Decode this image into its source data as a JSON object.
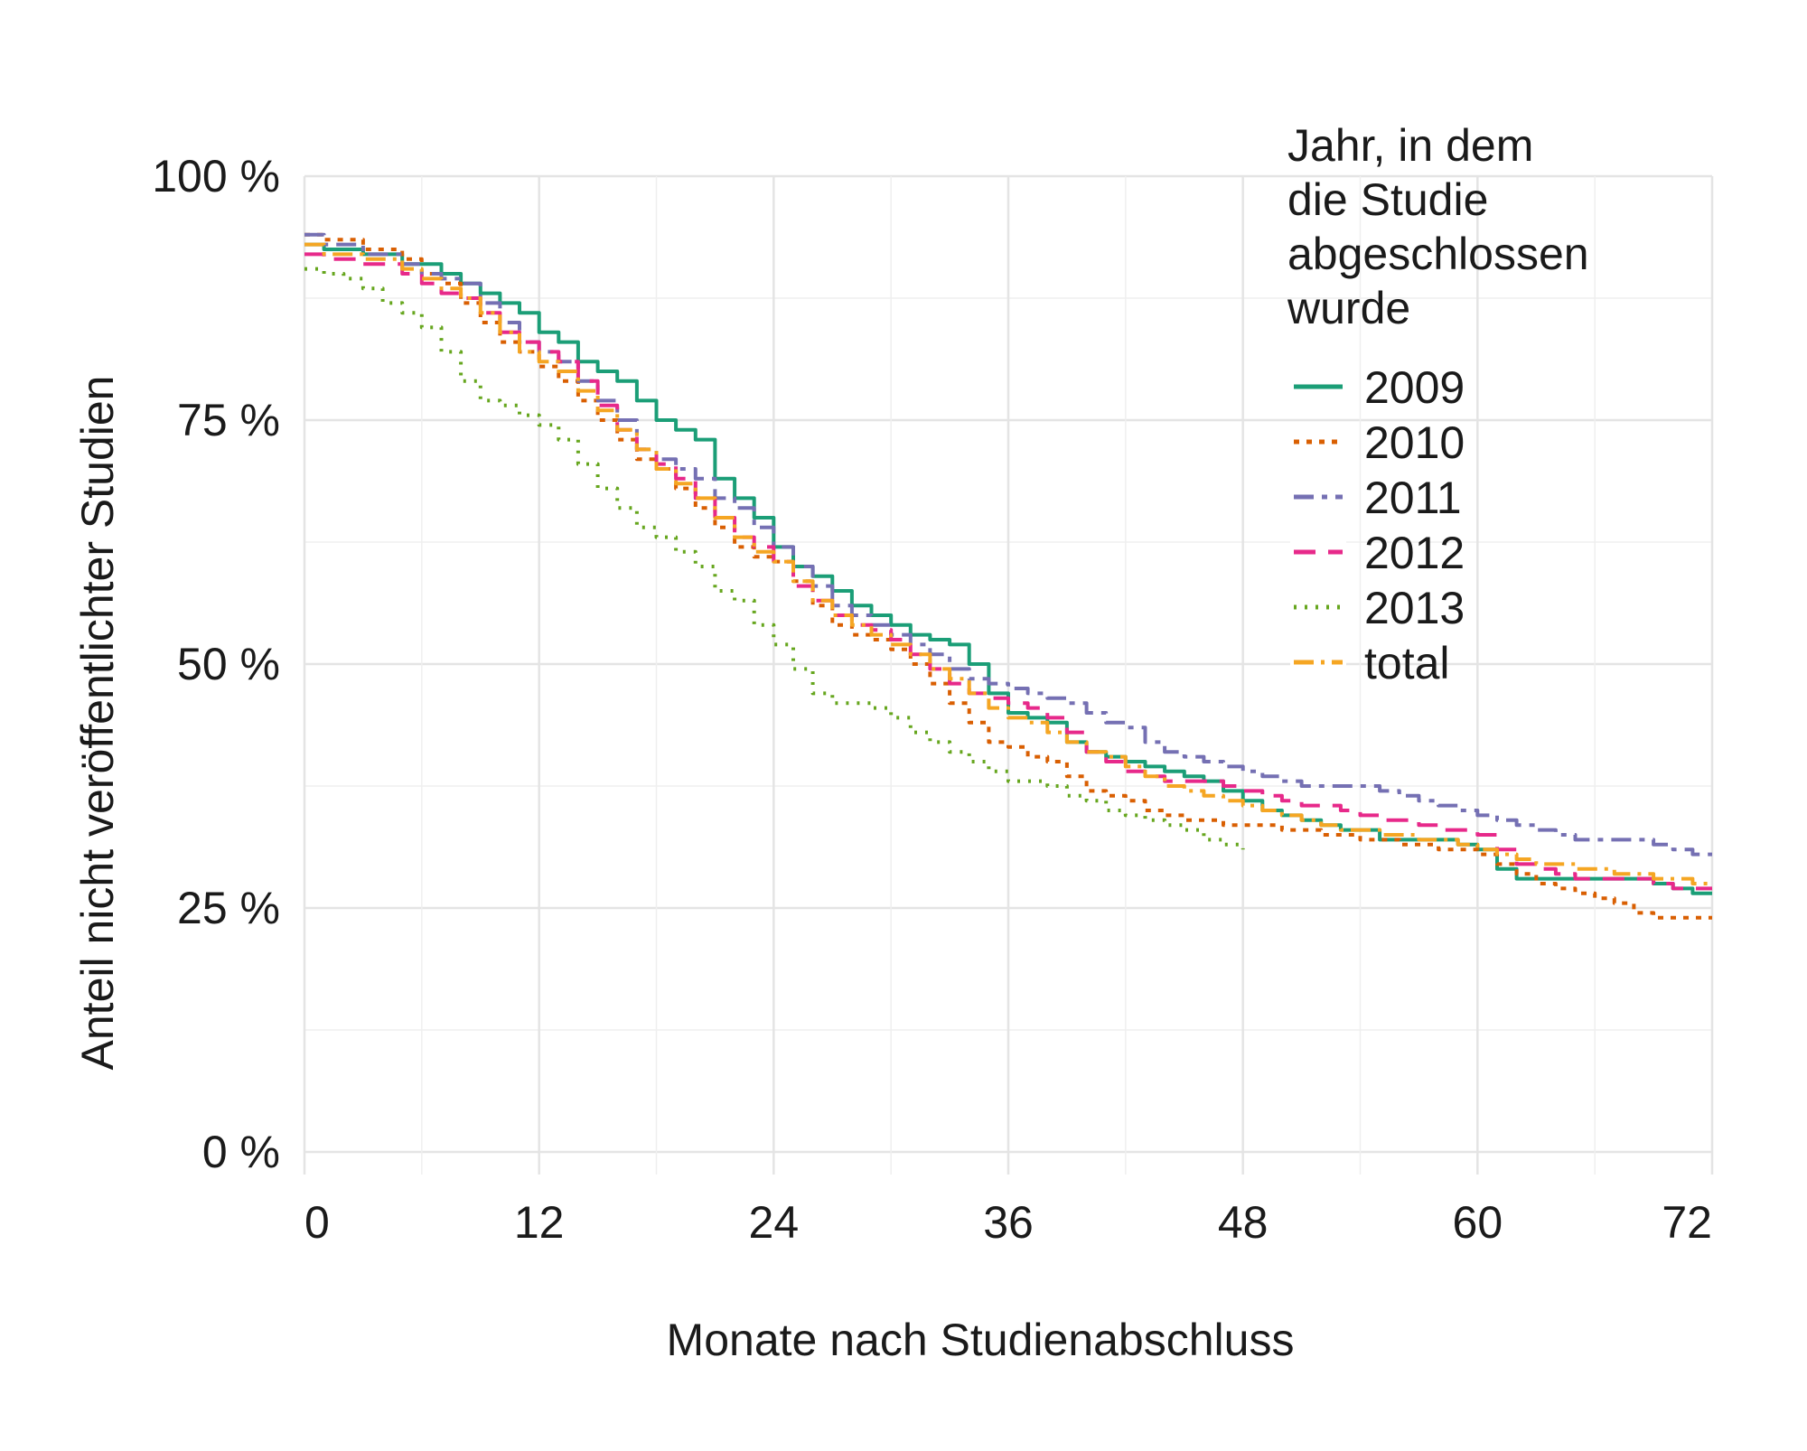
{
  "chart_data": {
    "type": "line",
    "title": "",
    "xlabel": "Monate nach Studienabschluss",
    "ylabel": "Anteil nicht veröffentlichter Studien",
    "xlim": [
      0,
      72
    ],
    "ylim": [
      0,
      100
    ],
    "x_ticks": [
      0,
      12,
      24,
      36,
      48,
      60,
      72
    ],
    "y_ticks": [
      0,
      25,
      50,
      75,
      100
    ],
    "y_tick_labels": [
      "0 %",
      "25 %",
      "50 %",
      "75 %",
      "100 %"
    ],
    "grid": true,
    "legend": {
      "title_lines": [
        "Jahr, in dem",
        "die Studie",
        "abgeschlossen",
        "wurde"
      ],
      "placement": "top-right"
    },
    "series": [
      {
        "name": "2009",
        "color": "#1b9e77",
        "dash": "solid",
        "x": [
          0,
          1,
          3,
          5,
          6,
          7,
          8,
          9,
          10,
          11,
          12,
          13,
          14,
          15,
          16,
          17,
          18,
          19,
          20,
          21,
          22,
          23,
          24,
          25,
          26,
          27,
          28,
          29,
          30,
          31,
          32,
          33,
          34,
          35,
          36,
          37,
          38,
          39,
          40,
          41,
          42,
          43,
          44,
          45,
          46,
          47,
          48,
          49,
          50,
          51,
          52,
          53,
          54,
          55,
          56,
          57,
          58,
          59,
          60,
          61,
          62,
          63,
          64,
          65,
          66,
          67,
          68,
          69,
          70,
          71,
          72
        ],
        "y": [
          93,
          92.5,
          92,
          91,
          91,
          90,
          89,
          88,
          87,
          86,
          84,
          83,
          81,
          80,
          79,
          77,
          75,
          74,
          73,
          69,
          67,
          65,
          62,
          60,
          59,
          57.5,
          56,
          55,
          54,
          53,
          52.5,
          52,
          50,
          47,
          45,
          44.5,
          44,
          42,
          41,
          40.5,
          40,
          39.5,
          39,
          38.5,
          38,
          37,
          36,
          35,
          34.5,
          34,
          33.5,
          33,
          33,
          32,
          32,
          32,
          32,
          31.5,
          31,
          29,
          28,
          28,
          28,
          28,
          28,
          28,
          28,
          27.5,
          27,
          26.5,
          26.5
        ]
      },
      {
        "name": "2010",
        "color": "#d95f02",
        "dash": "6,8",
        "x": [
          0,
          1,
          3,
          5,
          6,
          7,
          8,
          9,
          10,
          11,
          12,
          13,
          14,
          15,
          16,
          17,
          18,
          19,
          20,
          21,
          22,
          23,
          24,
          25,
          26,
          27,
          28,
          29,
          30,
          31,
          32,
          33,
          34,
          35,
          36,
          37,
          38,
          39,
          40,
          41,
          42,
          43,
          44,
          45,
          46,
          47,
          48,
          49,
          50,
          51,
          52,
          53,
          54,
          55,
          56,
          57,
          58,
          59,
          60,
          61,
          62,
          63,
          64,
          65,
          66,
          67,
          68,
          69,
          70,
          71,
          72
        ],
        "y": [
          94,
          93.5,
          92.5,
          91.5,
          90,
          89,
          87,
          85,
          83,
          82,
          80.5,
          79,
          77,
          75,
          73,
          71,
          70,
          68,
          66,
          64,
          62,
          61,
          60.5,
          58.5,
          56,
          54,
          53,
          52.5,
          51.5,
          50,
          48,
          46,
          44,
          42,
          41.5,
          40.5,
          40,
          38.5,
          37,
          36.5,
          36,
          35,
          34.5,
          34,
          34,
          33.5,
          33.5,
          33.5,
          33,
          33,
          32.5,
          32.5,
          32,
          32,
          31.5,
          31.5,
          31,
          31,
          30.5,
          29.5,
          28.5,
          27.5,
          27,
          26.5,
          26,
          25.5,
          24.5,
          24,
          24,
          24,
          24
        ]
      },
      {
        "name": "2011",
        "color": "#7570b3",
        "dash": "22,9,6,9",
        "x": [
          0,
          1,
          3,
          5,
          6,
          7,
          8,
          9,
          10,
          11,
          12,
          13,
          14,
          15,
          16,
          17,
          18,
          19,
          20,
          21,
          22,
          23,
          24,
          25,
          26,
          27,
          28,
          29,
          30,
          31,
          32,
          33,
          34,
          35,
          36,
          37,
          38,
          39,
          40,
          41,
          42,
          43,
          44,
          45,
          46,
          47,
          48,
          49,
          50,
          51,
          52,
          53,
          54,
          55,
          56,
          57,
          58,
          59,
          60,
          61,
          62,
          63,
          64,
          65,
          66,
          67,
          68,
          69,
          70,
          71,
          72
        ],
        "y": [
          94,
          93,
          92,
          91,
          90,
          89.5,
          89,
          87,
          85,
          83,
          82,
          81,
          79,
          77,
          75,
          72,
          71,
          70,
          69,
          67,
          66,
          64,
          62,
          60,
          58,
          56,
          55,
          54,
          53,
          52,
          51,
          49.5,
          48.5,
          48,
          47.5,
          47,
          46.5,
          46,
          45,
          44,
          43.5,
          42,
          41,
          40.5,
          40,
          39.5,
          39,
          38.5,
          38,
          37.5,
          37.5,
          37.5,
          37.5,
          37,
          36.5,
          36,
          35.5,
          35,
          34.5,
          34,
          33.5,
          33,
          32.5,
          32,
          32,
          32,
          32,
          31.5,
          31,
          30.5,
          30.5
        ]
      },
      {
        "name": "2012",
        "color": "#e7298a",
        "dash": "24,14",
        "x": [
          0,
          1,
          3,
          5,
          6,
          7,
          8,
          9,
          10,
          11,
          12,
          13,
          14,
          15,
          16,
          17,
          18,
          19,
          20,
          21,
          22,
          23,
          24,
          25,
          26,
          27,
          28,
          29,
          30,
          31,
          32,
          33,
          34,
          35,
          36,
          37,
          38,
          39,
          40,
          41,
          42,
          43,
          44,
          45,
          46,
          47,
          48,
          49,
          50,
          51,
          52,
          53,
          54,
          55,
          56,
          57,
          58,
          59,
          60,
          61,
          62,
          63,
          64,
          65,
          66,
          67,
          68,
          69,
          70,
          71,
          72
        ],
        "y": [
          92,
          91.5,
          91,
          90,
          89,
          88,
          87.5,
          86,
          84,
          83,
          82,
          81,
          79,
          76.5,
          74,
          72,
          70.5,
          69,
          67,
          65,
          63,
          62,
          60.5,
          58,
          56.5,
          55,
          54,
          53.5,
          52.5,
          51,
          49.5,
          48,
          47,
          46.5,
          46,
          45.5,
          44.5,
          43,
          41,
          40,
          39,
          38.5,
          38,
          38,
          38,
          37.5,
          37,
          36.5,
          36,
          35.5,
          35.5,
          35,
          34.5,
          34,
          34,
          33.5,
          33,
          33,
          32.5,
          31,
          29.5,
          29,
          28.5,
          28,
          28,
          28,
          28,
          27.5,
          27,
          27,
          27
        ]
      },
      {
        "name": "2013",
        "color": "#66a61e",
        "dash": "3,9",
        "x": [
          0,
          1,
          2,
          3,
          4,
          5,
          6,
          7,
          8,
          9,
          10,
          11,
          12,
          13,
          14,
          15,
          16,
          17,
          18,
          19,
          20,
          21,
          22,
          23,
          24,
          25,
          26,
          27,
          28,
          29,
          30,
          31,
          32,
          33,
          34,
          35,
          36,
          37,
          38,
          39,
          40,
          41,
          42,
          43,
          44,
          45,
          46,
          47,
          48
        ],
        "y": [
          90.5,
          90,
          89.5,
          88.5,
          87,
          86,
          84.5,
          82,
          79,
          77,
          76.5,
          75.5,
          74.5,
          73,
          70.5,
          68,
          66,
          64,
          63,
          61.5,
          60,
          57.5,
          56.5,
          54,
          52,
          49.5,
          47,
          46,
          46,
          45.5,
          44.5,
          43,
          42,
          41,
          40,
          39,
          38,
          38,
          37.5,
          36.5,
          36,
          35,
          34.5,
          34,
          33.5,
          33,
          32,
          31.5,
          31
        ]
      },
      {
        "name": "total",
        "color": "#f5a623",
        "dash": "22,8,4,8",
        "x": [
          0,
          1,
          3,
          5,
          6,
          7,
          8,
          9,
          10,
          11,
          12,
          13,
          14,
          15,
          16,
          17,
          18,
          19,
          20,
          21,
          22,
          23,
          24,
          25,
          26,
          27,
          28,
          29,
          30,
          31,
          32,
          33,
          34,
          35,
          36,
          37,
          38,
          39,
          40,
          41,
          42,
          43,
          44,
          45,
          46,
          47,
          48,
          49,
          50,
          51,
          52,
          53,
          54,
          55,
          56,
          57,
          58,
          59,
          60,
          61,
          62,
          63,
          64,
          65,
          66,
          67,
          68,
          69,
          70,
          71,
          72
        ],
        "y": [
          93,
          92,
          91.5,
          90.5,
          89.5,
          88.5,
          87.5,
          86,
          84,
          82,
          81,
          80,
          78,
          76,
          74,
          72,
          70,
          68.5,
          67,
          65,
          63,
          61.5,
          60.5,
          58.5,
          56.5,
          55,
          54,
          53,
          52,
          51,
          49.5,
          48.5,
          47,
          45.5,
          44.5,
          44,
          43,
          42,
          41,
          40.5,
          39.5,
          38.5,
          37.5,
          37,
          36.5,
          36,
          35.5,
          35,
          34.5,
          34,
          33.5,
          33,
          33,
          32.5,
          32.5,
          32,
          32,
          31.5,
          31,
          30.5,
          30,
          29.5,
          29.5,
          29,
          29,
          28.5,
          28.5,
          28,
          28,
          27.5,
          27.5
        ]
      }
    ]
  }
}
